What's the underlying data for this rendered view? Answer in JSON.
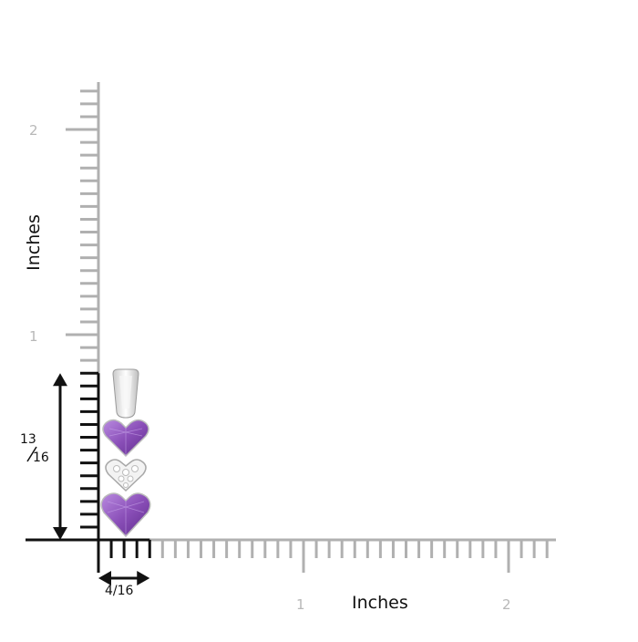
{
  "scale": {
    "unit_label": "Inches",
    "y_ticks": [
      "1",
      "2"
    ],
    "x_ticks": [
      "1",
      "2"
    ],
    "ticks_per_inch": 16
  },
  "measurements": {
    "height": {
      "whole": "",
      "numerator": "13",
      "denominator": "16"
    },
    "width": "4/16"
  },
  "colors": {
    "ruler_gray": "#b0b0b0",
    "ruler_black": "#111111",
    "amethyst": "#8a4fb8",
    "metal": "#e4e4e4"
  },
  "product": {
    "icon": "heart-pendant-icon",
    "stones": [
      "amethyst-heart",
      "diamond-cluster-heart",
      "amethyst-heart"
    ]
  }
}
